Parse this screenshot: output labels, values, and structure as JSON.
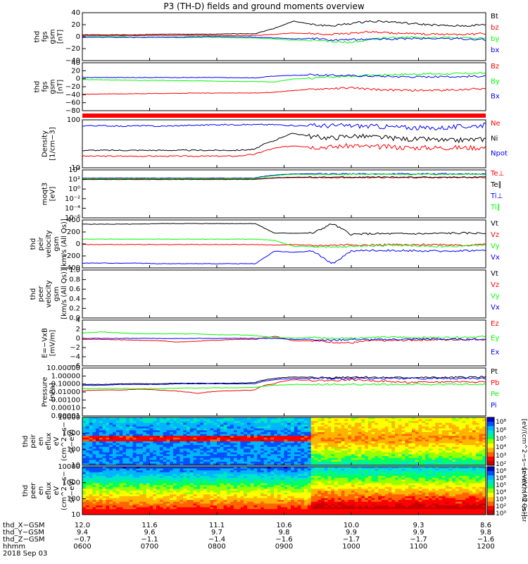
{
  "title": "P3 (TH-D) fields and ground moments overview",
  "date_label": "2018 Sep 03",
  "colors": {
    "black": "#000000",
    "red": "#ff0000",
    "green": "#00ff00",
    "blue": "#0000ff",
    "bar": "#ff0000"
  },
  "chart_data": [
    {
      "type": "line",
      "id": "fgs_gsm",
      "ylabel": [
        "thd",
        "fgs",
        "gsm",
        "[nT]"
      ],
      "ylim": [
        -40,
        40
      ],
      "yticks": [
        "40",
        "20",
        "0",
        "−20",
        "−40"
      ],
      "series": [
        {
          "name": "Bt",
          "color": "#000000",
          "values": [
            3,
            3,
            3,
            3,
            4,
            4,
            4,
            4,
            5,
            5,
            14,
            26,
            20,
            18,
            22,
            26,
            25,
            22,
            20,
            18,
            18,
            20
          ]
        },
        {
          "name": "bz",
          "color": "#ff0000",
          "values": [
            2,
            2,
            2,
            2,
            2,
            2,
            2,
            2,
            2,
            2,
            4,
            6,
            5,
            4,
            6,
            8,
            6,
            5,
            4,
            4,
            4,
            5
          ]
        },
        {
          "name": "by",
          "color": "#00ff00",
          "values": [
            0,
            0,
            0,
            -1,
            -1,
            -2,
            -1,
            -1,
            -2,
            -2,
            -4,
            -6,
            -6,
            -8,
            -10,
            -4,
            -2,
            -1,
            -2,
            -2,
            -2,
            -3
          ]
        },
        {
          "name": "bx",
          "color": "#0000ff",
          "values": [
            -1,
            -1,
            -1,
            -1,
            -1,
            -1,
            0,
            0,
            0,
            -1,
            -2,
            -4,
            -3,
            -6,
            -5,
            -4,
            -4,
            -3,
            -3,
            -3,
            -4,
            -5
          ]
        }
      ]
    },
    {
      "type": "line",
      "id": "fgs_gsm_b",
      "ylabel": [
        "thd",
        "fgs",
        "gsm",
        "[nT]"
      ],
      "ylim": [
        -90,
        40
      ],
      "yticks": [
        "40",
        "20",
        "0",
        "−20",
        "−40",
        "−60",
        "−80"
      ],
      "series": [
        {
          "name": "Bz",
          "color": "#ff0000",
          "values": [
            -45,
            -45,
            -44,
            -44,
            -43,
            -43,
            -42,
            -42,
            -42,
            -42,
            -40,
            -35,
            -32,
            -30,
            -28,
            -32,
            -34,
            -35,
            -35,
            -34,
            -32,
            -30
          ]
        },
        {
          "name": "By",
          "color": "#00ff00",
          "values": [
            -6,
            -6,
            -7,
            -8,
            -8,
            -9,
            -9,
            -10,
            -11,
            -11,
            -12,
            -4,
            -2,
            2,
            4,
            6,
            8,
            9,
            10,
            10,
            11,
            12
          ]
        },
        {
          "name": "Bx",
          "color": "#0000ff",
          "values": [
            0,
            0,
            0,
            0,
            0,
            0,
            0,
            0,
            -1,
            -1,
            4,
            6,
            7,
            6,
            5,
            4,
            3,
            2,
            2,
            2,
            3,
            4
          ]
        }
      ]
    },
    {
      "type": "line",
      "id": "density",
      "ylabel": [
        "Density",
        "[1/cm−3]"
      ],
      "log": true,
      "ylim": [
        1,
        300
      ],
      "yticks": [
        "100",
        "10"
      ],
      "series": [
        {
          "name": "Ne",
          "color": "#ff0000",
          "values": [
            4,
            4,
            4,
            4,
            4,
            4,
            4,
            4,
            4,
            5,
            10,
            14,
            12,
            12,
            14,
            12,
            12,
            11,
            11,
            11,
            11,
            11
          ]
        },
        {
          "name": "Ni",
          "color": "#000000",
          "values": [
            8,
            8,
            8,
            8,
            8,
            8,
            8,
            8,
            8,
            9,
            25,
            60,
            40,
            35,
            45,
            40,
            35,
            30,
            30,
            25,
            28,
            30
          ]
        },
        {
          "name": "Npot",
          "color": "#0000ff",
          "values": [
            150,
            150,
            140,
            150,
            140,
            150,
            160,
            170,
            170,
            170,
            170,
            150,
            150,
            150,
            150,
            140,
            130,
            120,
            110,
            120,
            140,
            160
          ]
        }
      ]
    },
    {
      "type": "line",
      "id": "moqt3",
      "ylabel": [
        "moqt3",
        "[eV]"
      ],
      "log": true,
      "ylim": [
        1e-06,
        10000.0
      ],
      "yticks": [
        "10⁴",
        "10²",
        "10⁰",
        "10⁻²",
        "10⁻⁴",
        "10⁻⁶"
      ],
      "series": [
        {
          "name": "Te⊥",
          "color": "#ff0000",
          "values": [
            100,
            100,
            100,
            100,
            100,
            100,
            100,
            100,
            100,
            100,
            200,
            250,
            250,
            250,
            250,
            250,
            250,
            250,
            250,
            250,
            250,
            250
          ]
        },
        {
          "name": "Te∥",
          "color": "#000000",
          "values": [
            120,
            120,
            120,
            120,
            120,
            120,
            120,
            120,
            120,
            120,
            220,
            300,
            300,
            300,
            300,
            300,
            300,
            300,
            300,
            300,
            300,
            300
          ]
        },
        {
          "name": "Ti⊥",
          "color": "#0000ff",
          "values": [
            200,
            200,
            200,
            200,
            200,
            200,
            200,
            200,
            200,
            200,
            800,
            1500,
            1500,
            1500,
            1500,
            1500,
            1500,
            1500,
            1500,
            1500,
            1500,
            1500
          ]
        },
        {
          "name": "Ti∥",
          "color": "#00ff00",
          "values": [
            150,
            150,
            150,
            150,
            150,
            150,
            150,
            150,
            150,
            150,
            600,
            1200,
            1200,
            1200,
            1200,
            1200,
            1200,
            1200,
            1200,
            1200,
            1200,
            1200
          ]
        }
      ]
    },
    {
      "type": "line",
      "id": "peir_velocity",
      "ylabel": [
        "thd",
        "peir",
        "velocity",
        "gsm",
        "[km/s (All Qs)]"
      ],
      "ylim": [
        -400,
        400
      ],
      "yticks": [
        "400",
        "200",
        "0",
        "−200",
        "−400"
      ],
      "series": [
        {
          "name": "Vt",
          "color": "#000000",
          "values": [
            330,
            330,
            330,
            330,
            340,
            340,
            340,
            340,
            340,
            340,
            180,
            180,
            180,
            340,
            160,
            170,
            170,
            170,
            170,
            180,
            180,
            180
          ]
        },
        {
          "name": "Vz",
          "color": "#ff0000",
          "values": [
            -10,
            -10,
            -10,
            -10,
            -10,
            -10,
            -10,
            -10,
            -10,
            -10,
            -20,
            -10,
            -30,
            -20,
            -10,
            -20,
            -10,
            -20,
            -10,
            -10,
            -20,
            -10
          ]
        },
        {
          "name": "Vy",
          "color": "#00ff00",
          "values": [
            80,
            80,
            80,
            80,
            80,
            80,
            80,
            80,
            80,
            80,
            60,
            -40,
            -40,
            -60,
            -40,
            -30,
            -20,
            -30,
            -40,
            -40,
            -30,
            -20
          ]
        },
        {
          "name": "Vx",
          "color": "#0000ff",
          "values": [
            -320,
            -320,
            -320,
            -320,
            -330,
            -330,
            -330,
            -330,
            -330,
            -330,
            -120,
            -140,
            -120,
            -330,
            -120,
            -110,
            -110,
            -110,
            -120,
            -120,
            -110,
            -110
          ]
        }
      ]
    },
    {
      "type": "line",
      "id": "peer_velocity",
      "ylabel": [
        "thd",
        "peer",
        "velocity",
        "gsm",
        "[km/s (All Qs)]"
      ],
      "ylim": [
        0,
        1
      ],
      "yticks": [
        "1.0",
        "0.8",
        "0.6",
        "0.4",
        "0.2",
        "0.0"
      ],
      "series": [
        {
          "name": "Vt",
          "color": "#000000",
          "values": []
        },
        {
          "name": "Vz",
          "color": "#ff0000",
          "values": []
        },
        {
          "name": "Vy",
          "color": "#00ff00",
          "values": []
        },
        {
          "name": "Vx",
          "color": "#0000ff",
          "values": []
        }
      ]
    },
    {
      "type": "line",
      "id": "e_field",
      "ylabel": [
        "E=−VxB",
        "[mV/m]"
      ],
      "ylim": [
        -6,
        4
      ],
      "yticks": [
        "4",
        "2",
        "0",
        "−2",
        "−4",
        "−6"
      ],
      "series": [
        {
          "name": "Ez",
          "color": "#ff0000",
          "values": [
            -0.2,
            -0.2,
            -0.3,
            -0.4,
            -0.5,
            -0.8,
            -0.6,
            -0.4,
            -0.2,
            -0.2,
            0.5,
            -0.5,
            -0.5,
            -0.8,
            -1,
            -0.5,
            -0.5,
            -0.4,
            -0.3,
            -0.3,
            -0.2,
            -0.2
          ]
        },
        {
          "name": "Ey",
          "color": "#00ff00",
          "values": [
            1.2,
            1.4,
            1.2,
            1.0,
            1.0,
            1.0,
            1.0,
            0.8,
            0.8,
            0.6,
            0.2,
            0.1,
            0.2,
            0.0,
            0.1,
            0.2,
            0.3,
            0.2,
            0.2,
            0.2,
            0.3,
            0.4
          ]
        },
        {
          "name": "Ex",
          "color": "#0000ff",
          "values": [
            0,
            0,
            0,
            0,
            0,
            0,
            0,
            0,
            0,
            0,
            0,
            -0.2,
            -0.2,
            -0.4,
            -0.2,
            -0.3,
            -0.2,
            -0.2,
            -0.1,
            -0.2,
            -0.2,
            -0.2
          ]
        }
      ]
    },
    {
      "type": "line",
      "id": "pressure",
      "ylabel": [
        "Pressure",
        "[nPa]"
      ],
      "log": true,
      "ylim": [
        1e-06,
        10
      ],
      "yticks": [
        "10.00000",
        "1.00000",
        "0.10000",
        "0.01000",
        "0.00100",
        "0.00010",
        "0.00001"
      ],
      "series": [
        {
          "name": "Pt",
          "color": "#000000",
          "values": [
            0.04,
            0.04,
            0.05,
            0.05,
            0.05,
            0.06,
            0.06,
            0.06,
            0.06,
            0.07,
            0.3,
            0.5,
            0.4,
            0.4,
            0.5,
            0.45,
            0.4,
            0.4,
            0.4,
            0.4,
            0.45,
            0.5
          ]
        },
        {
          "name": "Pb",
          "color": "#ff0000",
          "values": [
            0.005,
            0.006,
            0.006,
            0.008,
            0.006,
            0.004,
            0.002,
            0.004,
            0.005,
            0.006,
            0.05,
            0.2,
            0.15,
            0.15,
            0.2,
            0.15,
            0.1,
            0.08,
            0.08,
            0.1,
            0.1,
            0.1
          ]
        },
        {
          "name": "Pe",
          "color": "#00ff00",
          "values": [
            0.01,
            0.01,
            0.01,
            0.01,
            0.01,
            0.012,
            0.012,
            0.013,
            0.013,
            0.015,
            0.03,
            0.04,
            0.04,
            0.04,
            0.04,
            0.04,
            0.04,
            0.04,
            0.04,
            0.04,
            0.04,
            0.04
          ]
        },
        {
          "name": "Pi",
          "color": "#0000ff",
          "values": [
            0.03,
            0.03,
            0.04,
            0.04,
            0.04,
            0.05,
            0.05,
            0.05,
            0.05,
            0.05,
            0.2,
            0.3,
            0.3,
            0.3,
            0.3,
            0.3,
            0.3,
            0.3,
            0.3,
            0.3,
            0.3,
            0.3
          ]
        }
      ]
    },
    {
      "type": "heatmap",
      "id": "peir_eflux",
      "ylabel": [
        "thd",
        "peir",
        "en",
        "eflux",
        "eV",
        "(cm^2−s−",
        "sr−eV)"
      ],
      "log": true,
      "ylim": [
        5,
        20000
      ],
      "yticks": [
        "10000",
        "1000",
        "100",
        "10"
      ],
      "colorbar": {
        "label": "[eV/(cm^2−s−sr−eV) (All Qs)]",
        "ticks": [
          "10⁸",
          "10⁶",
          "10⁵",
          "10⁴",
          "10³",
          "10²"
        ]
      }
    },
    {
      "type": "heatmap",
      "id": "peer_eflux",
      "ylabel": [
        "thd",
        "peer",
        "en",
        "eflux",
        "eV",
        "(cm^2−s−",
        "sr−eV)"
      ],
      "log": true,
      "ylim": [
        5,
        20000
      ],
      "yticks": [
        "10000",
        "1000",
        "100",
        "10"
      ],
      "colorbar": {
        "label": "[eV/(cm^2−s−sr−eV) (All Qs)]",
        "ticks": [
          "10⁸",
          "10⁶",
          "10⁵",
          "10⁴",
          "10³",
          "10²",
          "10⁰"
        ]
      }
    }
  ],
  "ephemeris": {
    "labels": [
      "thd_X−GSM",
      "thd_Y−GSM",
      "thd_Z−GSM",
      "hhmm"
    ],
    "columns": [
      [
        "12.0",
        "9.4",
        "−0.7",
        "0600"
      ],
      [
        "11.6",
        "9.6",
        "−1.1",
        "0700"
      ],
      [
        "11.1",
        "9.7",
        "−1.4",
        "0800"
      ],
      [
        "10.6",
        "9.8",
        "−1.6",
        "0900"
      ],
      [
        "10.0",
        "9.9",
        "−1.7",
        "1000"
      ],
      [
        "9.3",
        "9.9",
        "−1.7",
        "1100"
      ],
      [
        "8.6",
        "9.8",
        "−1.6",
        "1200"
      ]
    ]
  }
}
